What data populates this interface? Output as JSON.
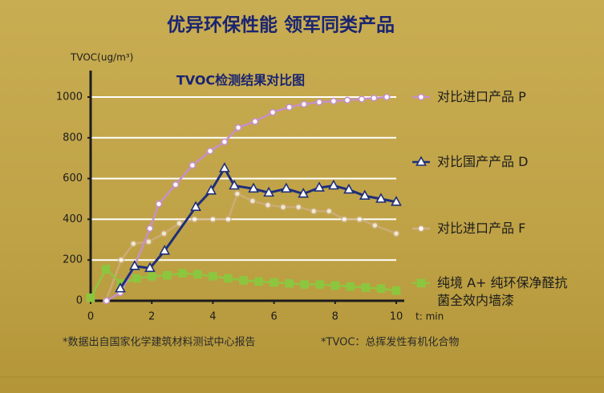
{
  "chart_data": {
    "type": "line",
    "title": "优异环保性能 领军同类产品",
    "subtitle": "TVOC检测结果对比图",
    "y_label": "TVOC(ug/m³)",
    "x_label": "t: min",
    "xlim": [
      0,
      10
    ],
    "xticks": [
      0,
      2,
      4,
      6,
      8,
      10
    ],
    "ylim": [
      0,
      1000
    ],
    "yticks": [
      0,
      200,
      400,
      600,
      800,
      1000
    ],
    "grid": true,
    "legend": "right",
    "series": [
      {
        "name": "对比进口产品 P",
        "color": "#c690c8",
        "marker": "circle",
        "x": [
          0.52,
          0.97,
          1.44,
          1.94,
          2.23,
          2.78,
          3.33,
          3.91,
          4.38,
          4.83,
          5.38,
          5.96,
          6.5,
          6.98,
          7.48,
          7.95,
          8.4,
          8.87,
          9.27,
          9.69
        ],
        "values": [
          0,
          40,
          170,
          355,
          475,
          570,
          665,
          735,
          780,
          850,
          880,
          925,
          950,
          965,
          975,
          980,
          985,
          990,
          995,
          1000
        ]
      },
      {
        "name": "对比国产产品 D",
        "color": "#1f2f78",
        "marker": "triangle",
        "x": [
          0.97,
          1.44,
          1.94,
          2.42,
          3.44,
          3.94,
          4.38,
          4.7,
          5.33,
          5.83,
          6.4,
          6.96,
          7.48,
          7.95,
          8.45,
          8.97,
          9.5,
          10
        ],
        "values": [
          60,
          170,
          160,
          245,
          460,
          540,
          650,
          565,
          550,
          530,
          550,
          525,
          555,
          565,
          545,
          515,
          500,
          485
        ]
      },
      {
        "name": "对比进口产品 F",
        "color": "#cfb088",
        "marker": "circle",
        "x": [
          0.5,
          1.0,
          1.4,
          1.9,
          2.4,
          2.9,
          3.4,
          4.0,
          4.5,
          4.8,
          5.3,
          5.8,
          6.3,
          6.8,
          7.3,
          7.8,
          8.3,
          8.8,
          9.3,
          10
        ],
        "values": [
          0,
          200,
          280,
          290,
          330,
          380,
          400,
          400,
          400,
          525,
          490,
          470,
          460,
          460,
          440,
          440,
          400,
          400,
          370,
          330
        ]
      },
      {
        "name": "纯境 A+ 纯环保净醛抗菌全效内墙漆",
        "color": "#8cc63f",
        "marker": "square",
        "x": [
          0,
          0.5,
          1,
          1.5,
          2,
          2.5,
          3,
          3.5,
          4,
          4.5,
          5,
          5.5,
          6,
          6.5,
          7,
          7.5,
          8,
          8.5,
          9,
          9.5,
          10
        ],
        "values": [
          15,
          155,
          85,
          110,
          120,
          125,
          135,
          130,
          120,
          110,
          100,
          95,
          90,
          85,
          80,
          80,
          75,
          70,
          65,
          60,
          50
        ]
      }
    ],
    "notes": [
      "*数据出自国家化学建筑材料测试中心报告",
      "*TVOC：总挥发性有机化合物"
    ]
  }
}
